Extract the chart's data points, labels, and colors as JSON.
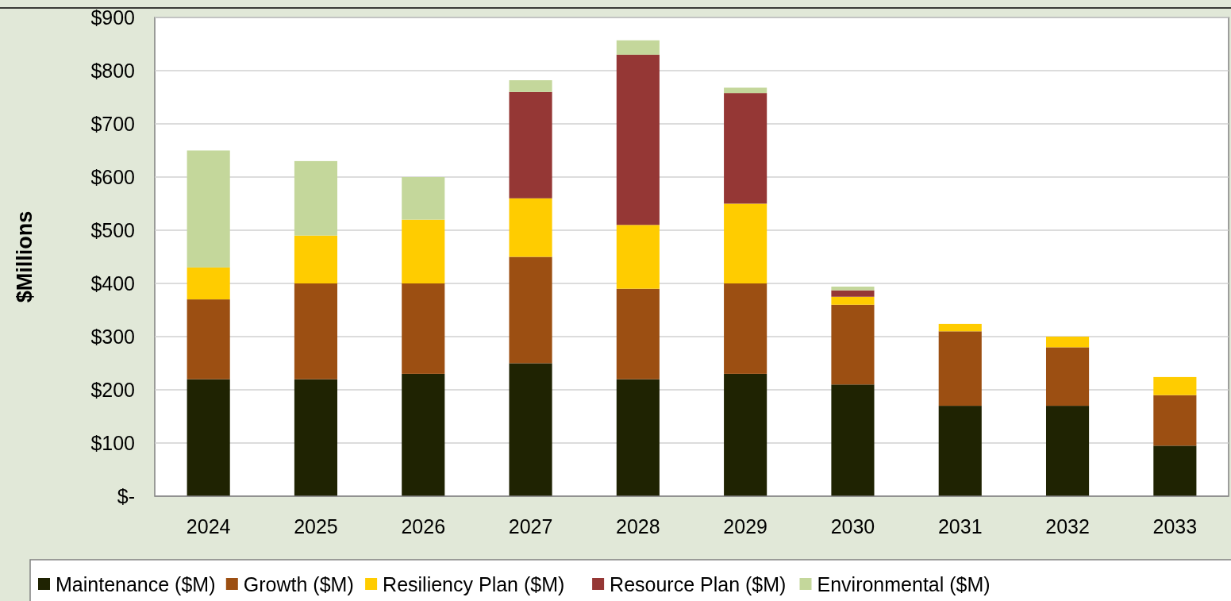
{
  "chart_data": {
    "type": "bar",
    "stacked": true,
    "ylabel": "$Millions",
    "categories": [
      "2024",
      "2025",
      "2026",
      "2027",
      "2028",
      "2029",
      "2030",
      "2031",
      "2032",
      "2033"
    ],
    "series": [
      {
        "name": "Maintenance ($M)",
        "color": "#1f2302",
        "values": [
          220,
          220,
          230,
          250,
          220,
          230,
          210,
          170,
          170,
          95
        ]
      },
      {
        "name": "Growth ($M)",
        "color": "#9c4f12",
        "values": [
          150,
          180,
          170,
          200,
          170,
          170,
          150,
          140,
          110,
          95
        ]
      },
      {
        "name": "Resiliency Plan ($M)",
        "color": "#ffcc00",
        "values": [
          60,
          90,
          120,
          110,
          120,
          150,
          15,
          14,
          20,
          34
        ]
      },
      {
        "name": "Resource Plan ($M)",
        "color": "#953735",
        "values": [
          0,
          0,
          0,
          200,
          320,
          208,
          12,
          0,
          0,
          0
        ]
      },
      {
        "name": "Environmental ($M)",
        "color": "#c4d79b",
        "values": [
          220,
          140,
          80,
          22,
          27,
          10,
          7,
          0,
          0,
          0
        ]
      }
    ],
    "ylim": [
      0,
      900
    ],
    "yticks": [
      {
        "value": 0,
        "label": "$-"
      },
      {
        "value": 100,
        "label": "$100"
      },
      {
        "value": 200,
        "label": "$200"
      },
      {
        "value": 300,
        "label": "$300"
      },
      {
        "value": 400,
        "label": "$400"
      },
      {
        "value": 500,
        "label": "$500"
      },
      {
        "value": 600,
        "label": "$600"
      },
      {
        "value": 700,
        "label": "$700"
      },
      {
        "value": 800,
        "label": "$800"
      },
      {
        "value": 900,
        "label": "$900"
      }
    ],
    "grid": "y",
    "legend": "bottom"
  }
}
